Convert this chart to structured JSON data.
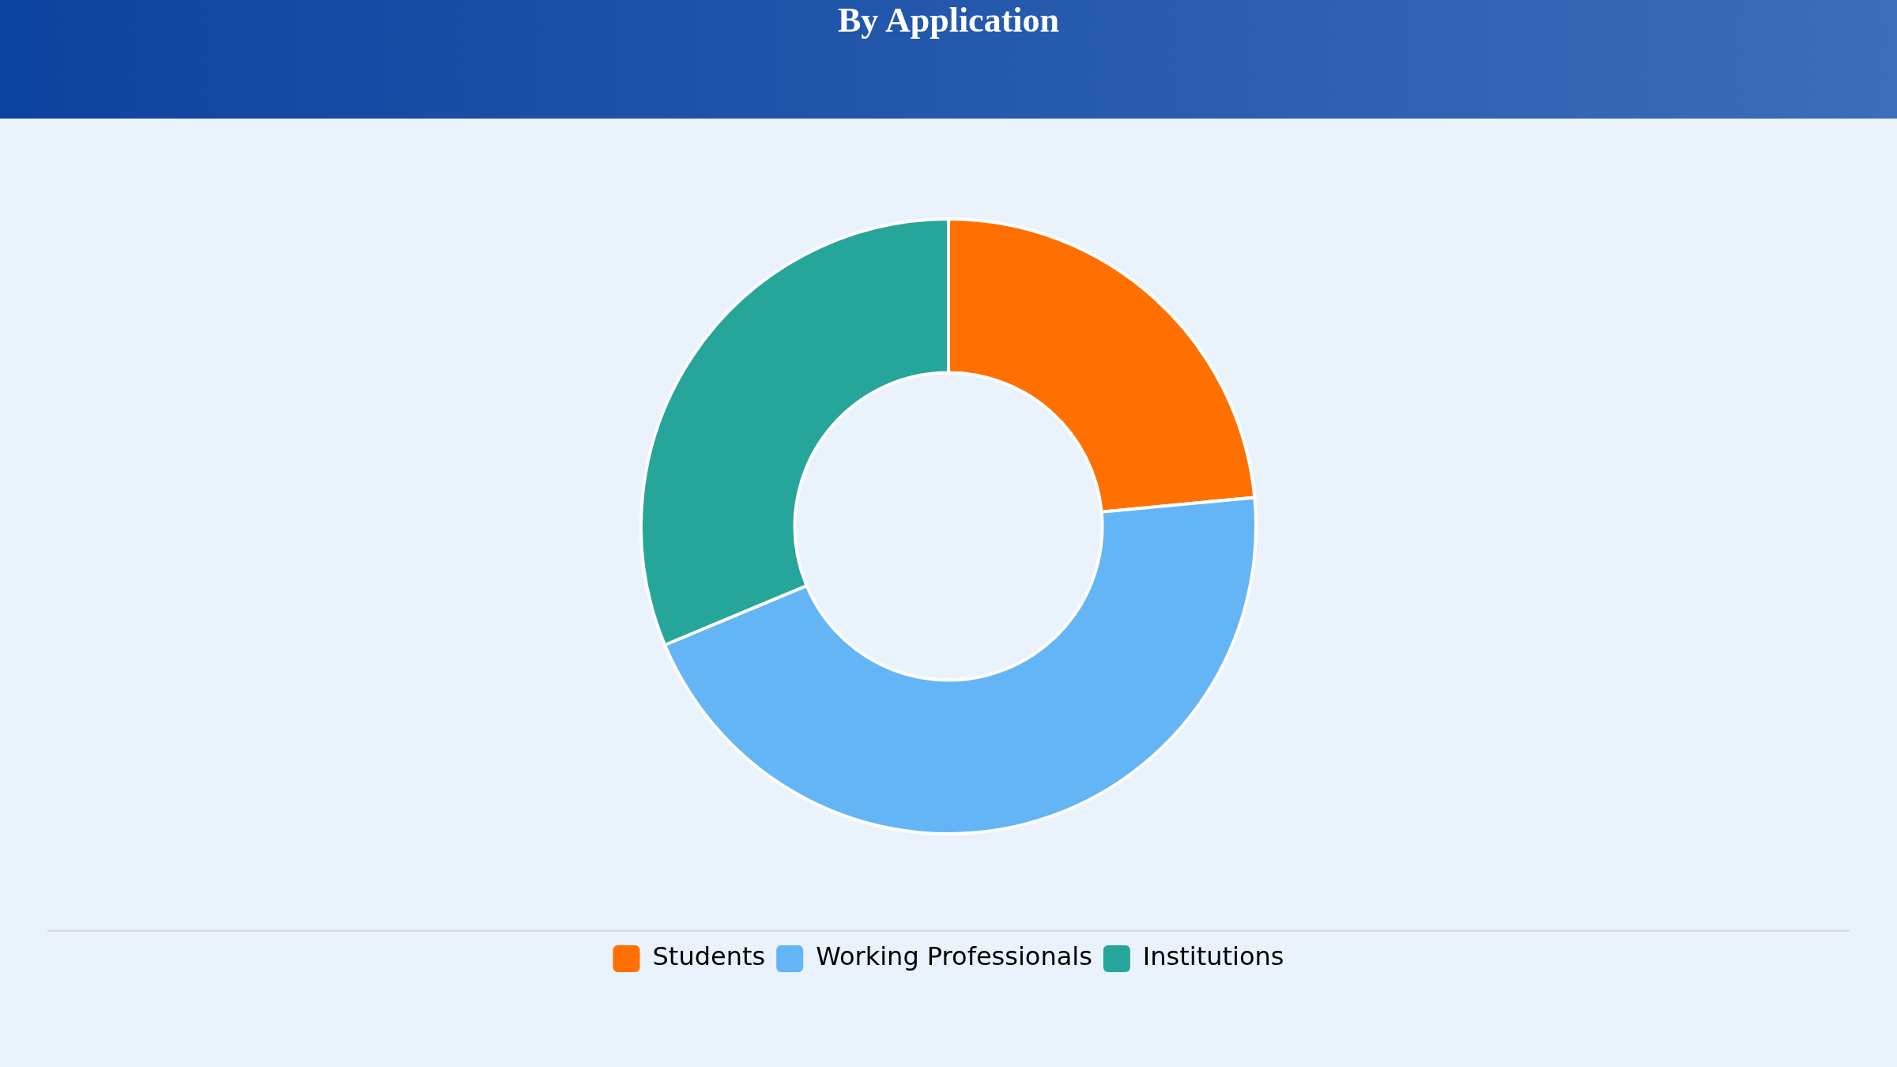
{
  "chart_data": {
    "type": "donut",
    "title": "By Application",
    "categories": [
      "Students",
      "Working Professionals",
      "Institutions"
    ],
    "values": [
      23.5,
      45.2,
      31.3
    ],
    "colors": [
      "#ff7000",
      "#64b5f6",
      "#26a69a"
    ],
    "legend": "bottom"
  }
}
